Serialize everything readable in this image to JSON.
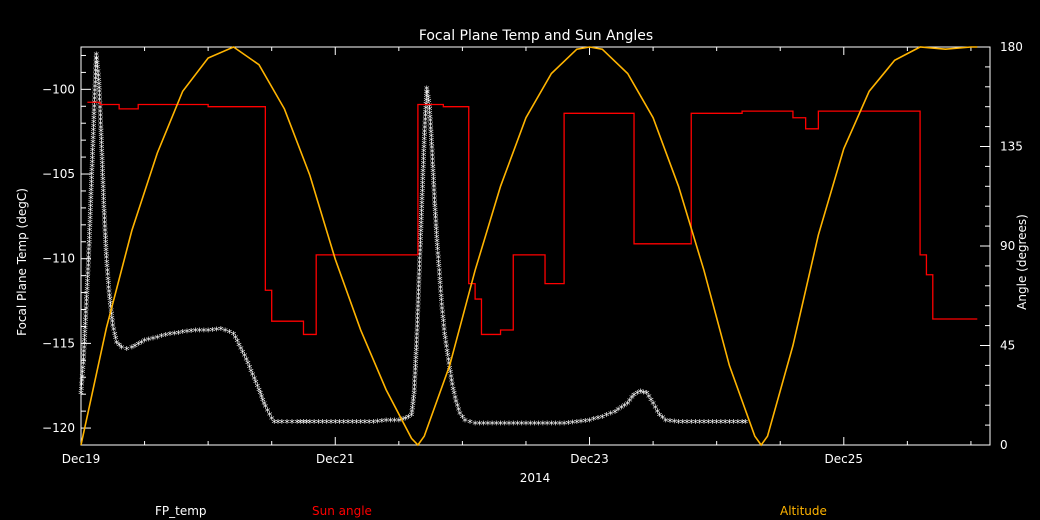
{
  "chart_data": {
    "type": "line",
    "title": "Focal Plane Temp and Sun Angles",
    "xlabel": "2014",
    "ylabel": "Focal Plane Temp (degC)",
    "y2label": "Angle (degrees)",
    "x_ticks": [
      "Dec19",
      "Dec21",
      "Dec23",
      "Dec25"
    ],
    "x_tick_values": [
      0,
      2,
      4,
      6
    ],
    "xlim": [
      0,
      7.15
    ],
    "ylim": [
      -121,
      -97.5
    ],
    "y_ticks": [
      -100,
      -105,
      -110,
      -115,
      -120
    ],
    "y2lim": [
      0,
      180
    ],
    "y2_ticks": [
      0,
      45,
      90,
      135,
      180
    ],
    "background": "#000000",
    "axis_color": "#ffffff",
    "series": [
      {
        "name": "FP_temp",
        "axis": "left",
        "color": "#ffffff",
        "marker": "*",
        "x": [
          0.0,
          0.02,
          0.04,
          0.06,
          0.08,
          0.1,
          0.12,
          0.14,
          0.16,
          0.18,
          0.2,
          0.22,
          0.25,
          0.28,
          0.32,
          0.36,
          0.4,
          0.45,
          0.5,
          0.6,
          0.7,
          0.8,
          0.9,
          1.0,
          1.1,
          1.2,
          1.3,
          1.4,
          1.45,
          1.5,
          1.52,
          1.55,
          1.58,
          1.62,
          1.66,
          1.7,
          1.75,
          1.8,
          1.9,
          2.0,
          2.1,
          2.2,
          2.3,
          2.4,
          2.5,
          2.55,
          2.6,
          2.62,
          2.64,
          2.66,
          2.68,
          2.7,
          2.72,
          2.74,
          2.76,
          2.78,
          2.8,
          2.82,
          2.84,
          2.86,
          2.88,
          2.9,
          2.92,
          2.95,
          2.98,
          3.02,
          3.06,
          3.1,
          3.2,
          3.3,
          3.4,
          3.5,
          3.6,
          3.7,
          3.8,
          3.9,
          4.0,
          4.1,
          4.2,
          4.3,
          4.35,
          4.4,
          4.45,
          4.5,
          4.55,
          4.6,
          4.7,
          4.8,
          4.9,
          5.0,
          5.1,
          5.2,
          5.25
        ],
        "y": [
          -118.0,
          -116.0,
          -113.0,
          -110.0,
          -106.0,
          -102.0,
          -98.0,
          -99.5,
          -103.0,
          -107.0,
          -110.0,
          -112.0,
          -114.0,
          -115.0,
          -115.3,
          -115.4,
          -115.3,
          -115.1,
          -114.9,
          -114.7,
          -114.5,
          -114.4,
          -114.3,
          -114.3,
          -114.2,
          -114.5,
          -116.0,
          -117.8,
          -118.8,
          -119.5,
          -119.7,
          -119.7,
          -119.7,
          -119.7,
          -119.7,
          -119.7,
          -119.7,
          -119.7,
          -119.7,
          -119.7,
          -119.7,
          -119.7,
          -119.7,
          -119.6,
          -119.6,
          -119.5,
          -119.3,
          -118.0,
          -115.0,
          -111.0,
          -107.0,
          -103.0,
          -100.0,
          -101.0,
          -103.5,
          -106.5,
          -109.0,
          -111.0,
          -113.0,
          -114.5,
          -115.5,
          -116.5,
          -117.5,
          -118.5,
          -119.2,
          -119.6,
          -119.7,
          -119.8,
          -119.8,
          -119.8,
          -119.8,
          -119.8,
          -119.8,
          -119.8,
          -119.8,
          -119.7,
          -119.6,
          -119.4,
          -119.1,
          -118.6,
          -118.1,
          -117.9,
          -118.0,
          -118.6,
          -119.3,
          -119.6,
          -119.7,
          -119.7,
          -119.7,
          -119.7,
          -119.7,
          -119.7,
          -119.7
        ]
      },
      {
        "name": "Sun angle",
        "axis": "right",
        "color": "#ff0000",
        "step": true,
        "x": [
          0.05,
          0.15,
          0.3,
          0.45,
          0.7,
          1.0,
          1.3,
          1.4,
          1.45,
          1.5,
          1.6,
          1.75,
          1.8,
          1.85,
          2.0,
          2.3,
          2.55,
          2.65,
          2.8,
          2.85,
          2.9,
          2.95,
          3.0,
          3.05,
          3.1,
          3.15,
          3.3,
          3.4,
          3.55,
          3.6,
          3.65,
          3.8,
          4.0,
          4.2,
          4.3,
          4.35,
          4.5,
          4.7,
          4.75,
          4.8,
          4.9,
          5.0,
          5.2,
          5.4,
          5.6,
          5.7,
          5.75,
          5.8,
          5.9,
          6.0,
          6.2,
          6.3,
          6.5,
          6.55,
          6.6,
          6.65,
          6.7,
          6.85,
          7.0,
          7.05
        ],
        "y": [
          155,
          154,
          152,
          154,
          154,
          153,
          153,
          153,
          70,
          56,
          56,
          50,
          50,
          86,
          86,
          86,
          86,
          154,
          154,
          153,
          153,
          153,
          153,
          73,
          66,
          50,
          52,
          86,
          86,
          86,
          73,
          150,
          150,
          150,
          150,
          91,
          91,
          91,
          91,
          150,
          150,
          150,
          151,
          151,
          148,
          143,
          143,
          151,
          151,
          151,
          151,
          151,
          151,
          151,
          86,
          77,
          57,
          57,
          57,
          57
        ]
      },
      {
        "name": "Altitude",
        "axis": "right",
        "color": "#ffb400",
        "x": [
          0.0,
          0.2,
          0.4,
          0.6,
          0.8,
          1.0,
          1.2,
          1.4,
          1.6,
          1.8,
          2.0,
          2.2,
          2.4,
          2.6,
          2.65,
          2.7,
          2.9,
          3.1,
          3.3,
          3.5,
          3.7,
          3.9,
          4.0,
          4.1,
          4.3,
          4.5,
          4.7,
          4.9,
          5.1,
          5.3,
          5.35,
          5.4,
          5.6,
          5.8,
          6.0,
          6.2,
          6.4,
          6.6,
          6.8,
          7.0,
          7.05
        ],
        "y": [
          0,
          53,
          97,
          132,
          160,
          175,
          180,
          172,
          152,
          122,
          84,
          52,
          25,
          3,
          0,
          4,
          36,
          79,
          117,
          148,
          168,
          179,
          180,
          179,
          168,
          148,
          117,
          79,
          36,
          4,
          0,
          4,
          45,
          95,
          134,
          160,
          174,
          180,
          179,
          180,
          180
        ]
      }
    ],
    "legend": {
      "placement": "bottom",
      "entries": [
        {
          "label": "FP_temp",
          "color": "#ffffff"
        },
        {
          "label": "Sun angle",
          "color": "#ff0000"
        },
        {
          "label": "Altitude",
          "color": "#ffb400"
        }
      ]
    },
    "grid": false
  }
}
